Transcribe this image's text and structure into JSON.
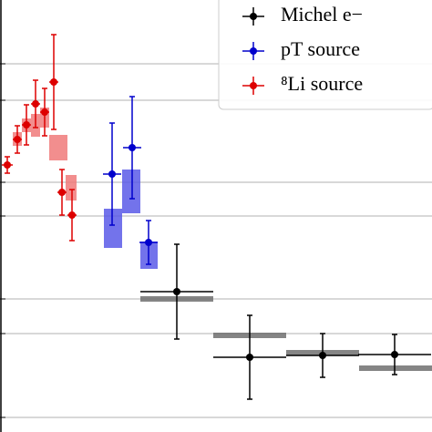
{
  "chart_data": {
    "type": "errorbar",
    "xlim": [
      0,
      474
    ],
    "ylim": [
      0,
      474
    ],
    "yticks": [
      16,
      108,
      146,
      237,
      274,
      364,
      404
    ],
    "grid": true,
    "legend": "upper right",
    "series": [
      {
        "name": "Michel e−",
        "color": "#000000",
        "band_color": "#707070",
        "x": [
          194,
          274,
          354,
          433
        ],
        "xerr": [
          40,
          40,
          40,
          40
        ],
        "values": [
          154,
          82,
          84,
          85
        ],
        "yerr": [
          52,
          46,
          24,
          22
        ],
        "band_x_low": [
          154,
          234,
          314,
          394
        ],
        "band_x_high": [
          234,
          314,
          394,
          474
        ],
        "band_low": [
          143,
          103,
          84,
          67
        ],
        "band_high": [
          149,
          109,
          90,
          73
        ]
      },
      {
        "name": "pT source",
        "color": "#0000cc",
        "band_color": "#5a5ae8",
        "x": [
          123,
          145,
          163
        ],
        "xerr": [
          10,
          10,
          10
        ],
        "values": [
          283,
          312,
          208
        ],
        "yerr": [
          56,
          56,
          24
        ],
        "band_x_low": [
          114,
          134,
          154
        ],
        "band_x_high": [
          134,
          154,
          173
        ],
        "band_low": [
          202,
          240,
          179
        ],
        "band_high": [
          245,
          288,
          209
        ]
      },
      {
        "name": "⁸Li source",
        "color": "#dd0000",
        "band_color": "#f07a7a",
        "x": [
          8,
          19,
          29,
          39,
          49,
          59,
          68,
          79
        ],
        "xerr": [
          6,
          5,
          5,
          5,
          5,
          5,
          5,
          5
        ],
        "values": [
          293,
          321,
          337,
          360,
          351,
          384,
          263,
          238
        ],
        "yerr": [
          9,
          15,
          22,
          26,
          26,
          52,
          25,
          28
        ],
        "band_x_low": [
          14,
          24,
          34,
          44,
          54,
          72
        ],
        "band_x_high": [
          24,
          34,
          44,
          54,
          74,
          84
        ],
        "band_low": [
          314,
          329,
          324,
          334,
          298,
          254
        ],
        "band_high": [
          329,
          344,
          349,
          356,
          326,
          282
        ]
      }
    ]
  }
}
